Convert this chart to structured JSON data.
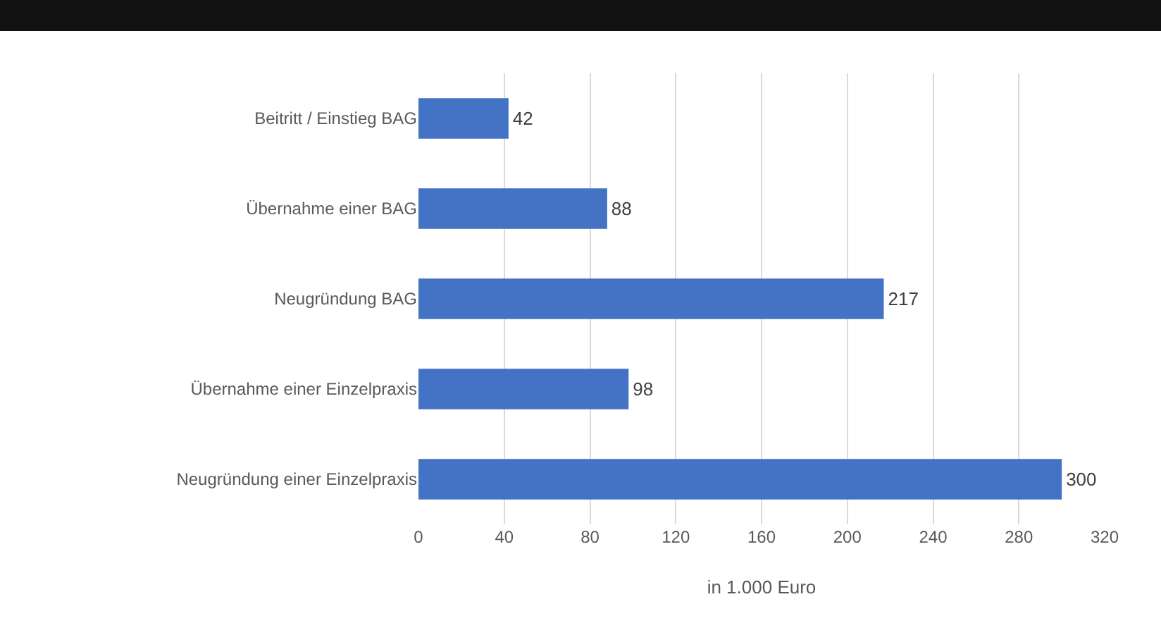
{
  "chart_data": {
    "type": "bar",
    "orientation": "horizontal",
    "categories": [
      "Beitritt / Einstieg BAG",
      "Übernahme einer BAG",
      "Neugründung BAG",
      "Übernahme einer Einzelpraxis",
      "Neugründung einer Einzelpraxis"
    ],
    "values": [
      42,
      88,
      217,
      98,
      300
    ],
    "color": "#4472c4",
    "xlabel": "in 1.000 Euro",
    "xlim": [
      0,
      320
    ],
    "xticks": [
      0,
      40,
      80,
      120,
      160,
      200,
      240,
      280,
      320
    ],
    "grid": "x",
    "data_labels": true
  }
}
